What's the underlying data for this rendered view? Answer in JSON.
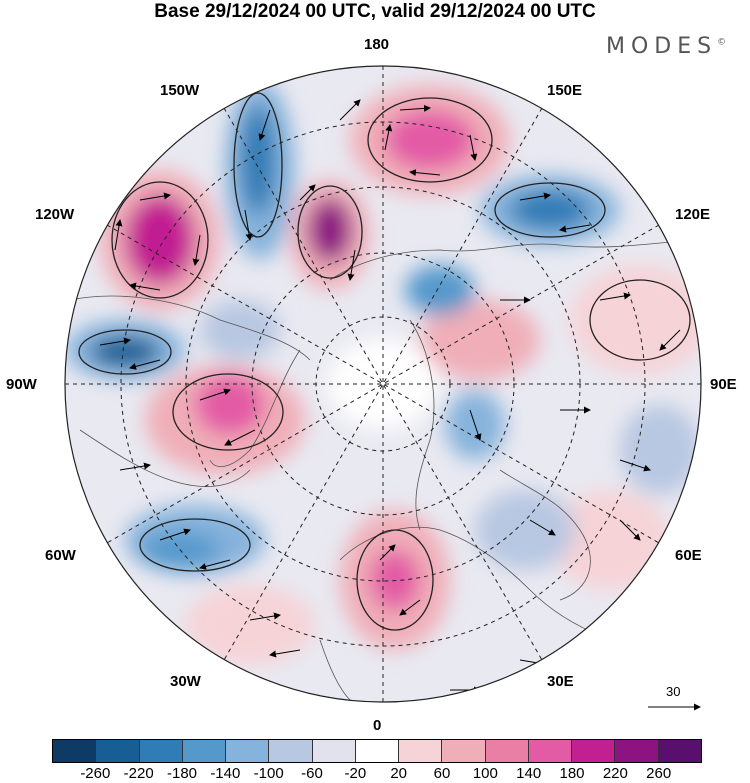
{
  "title": "Base 29/12/2024 00 UTC, valid 29/12/2024 00 UTC",
  "logo": {
    "text": "MODES",
    "mark": "©"
  },
  "meridian_labels": {
    "lon_180": "180",
    "lon_150e": "150E",
    "lon_120e": "120E",
    "lon_90e": "90E",
    "lon_60e": "60E",
    "lon_30e": "30E",
    "lon_0": "0",
    "lon_30w": "30W",
    "lon_60w": "60W",
    "lon_90w": "90W",
    "lon_120w": "120W",
    "lon_150w": "150W"
  },
  "reference_vector": {
    "label": "30"
  },
  "colorbar": {
    "colors": [
      "#0d3b66",
      "#175e95",
      "#2f7cb6",
      "#5599cc",
      "#86b3dc",
      "#b8c7e2",
      "#e2e2ef",
      "#ffffff",
      "#f6d3d7",
      "#f0aeb8",
      "#e97fa4",
      "#e35aa5",
      "#c21f92",
      "#8d1282",
      "#580f6e"
    ],
    "ticks": [
      "-260",
      "-220",
      "-180",
      "-140",
      "-100",
      "-60",
      "-20",
      "20",
      "60",
      "100",
      "140",
      "180",
      "220",
      "260"
    ]
  }
}
